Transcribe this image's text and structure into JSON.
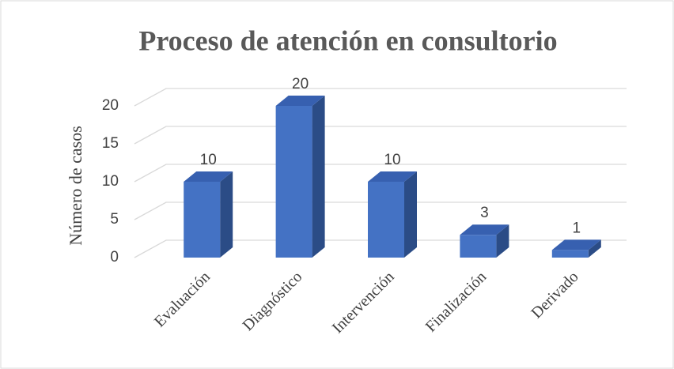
{
  "chart_data": {
    "type": "bar3d",
    "title": "Proceso de atención en consultorio",
    "y_label": "Número de casos",
    "categories": [
      "Evaluación",
      "Diagnóstico",
      "Intervención",
      "Finalización",
      "Derivado"
    ],
    "values": [
      10,
      20,
      10,
      3,
      1
    ],
    "color": "#4472c4",
    "ylim": [
      0,
      20
    ],
    "yticks": [
      0,
      5,
      10,
      15,
      20
    ],
    "grid": true
  }
}
